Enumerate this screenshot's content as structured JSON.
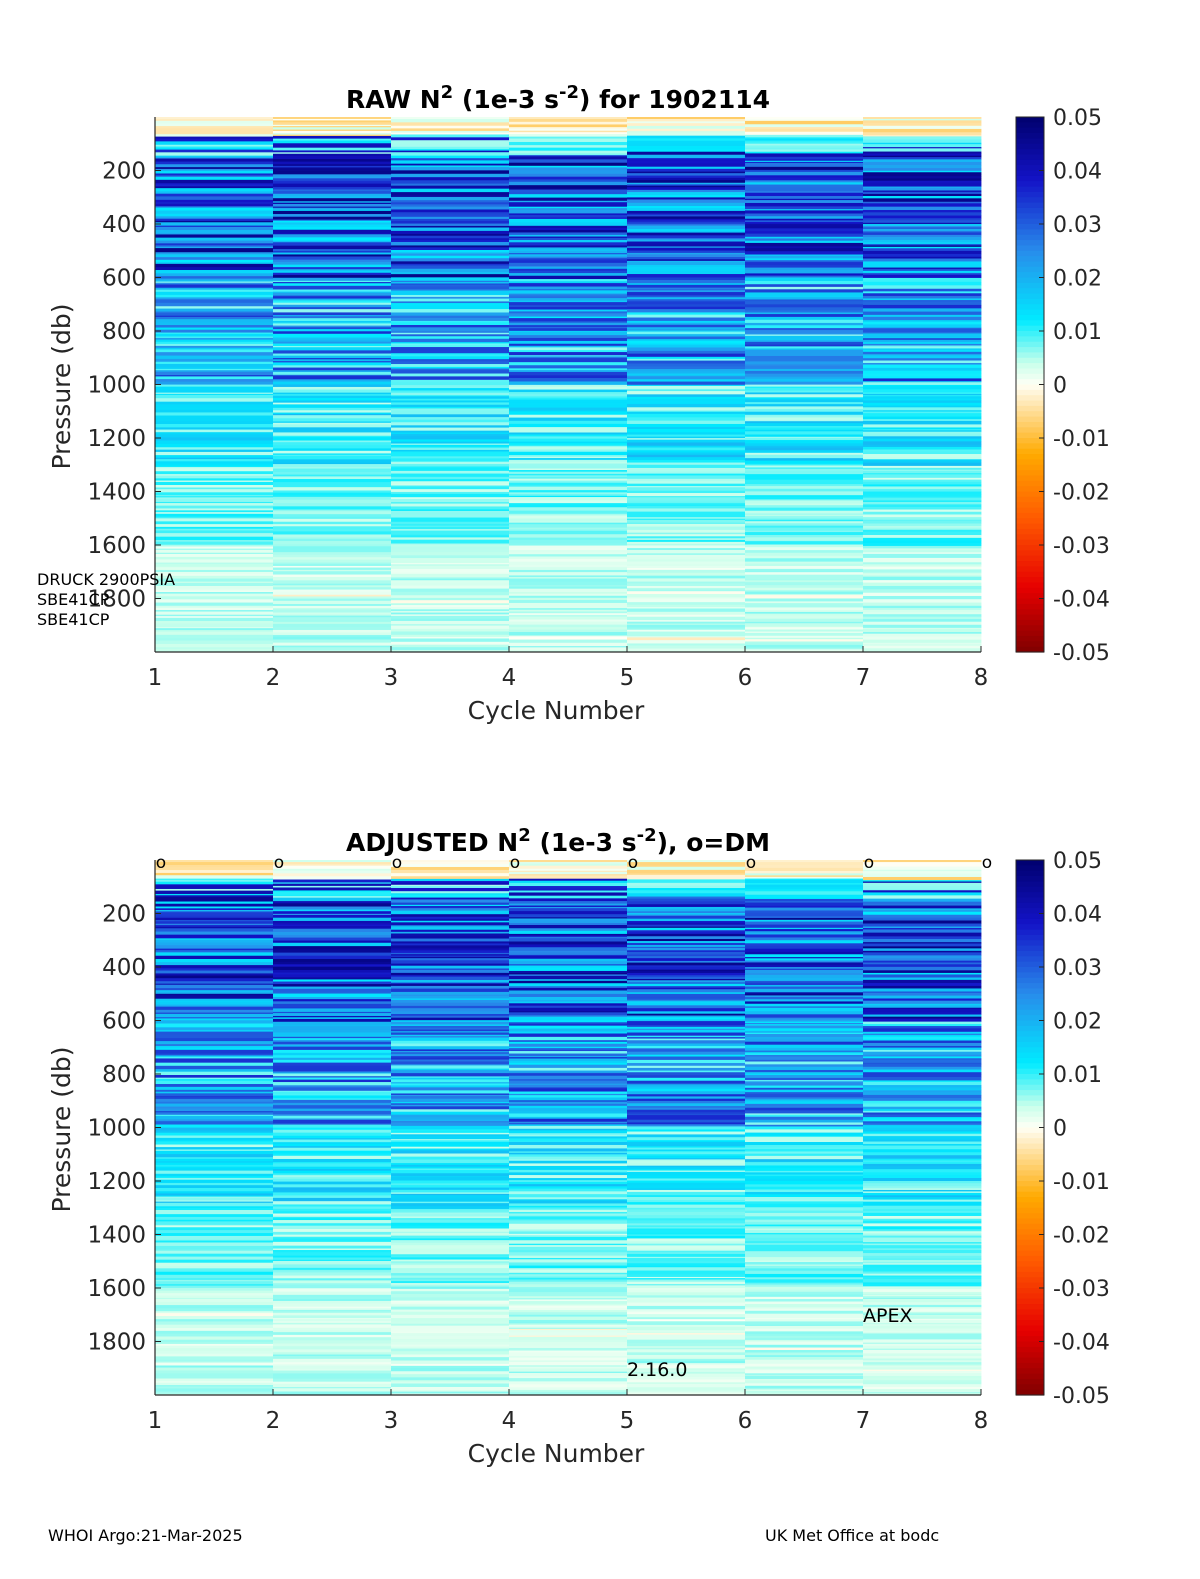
{
  "chart_data": [
    {
      "type": "heatmap",
      "title_main": "RAW N",
      "title_sup1": "2",
      "title_mid": " (1e-3 s",
      "title_sup2": "-2",
      "title_end": ") for 1902114",
      "xlabel": "Cycle Number",
      "ylabel": "Pressure (db)",
      "xlim": [
        1,
        8
      ],
      "ylim": [
        2000,
        0
      ],
      "x_ticks": [
        "1",
        "2",
        "3",
        "4",
        "5",
        "6",
        "7",
        "8"
      ],
      "y_ticks": [
        "200",
        "400",
        "600",
        "800",
        "1000",
        "1200",
        "1400",
        "1600",
        "1800"
      ],
      "colorbar": {
        "range": [
          -0.05,
          0.05
        ],
        "ticks": [
          "0.05",
          "0.04",
          "0.03",
          "0.02",
          "0.01",
          "0",
          "-0.01",
          "-0.02",
          "-0.03",
          "-0.04",
          "-0.05"
        ]
      },
      "cycles": [
        1,
        2,
        3,
        4,
        5,
        6,
        7
      ],
      "annotations": [
        "DRUCK 2900PSIA",
        "SBE41CP",
        "SBE41CP"
      ],
      "show_dm_markers": false
    },
    {
      "type": "heatmap",
      "title_main": "ADJUSTED N",
      "title_sup1": "2",
      "title_mid": " (1e-3 s",
      "title_sup2": "-2",
      "title_end": "), o=DM",
      "xlabel": "Cycle Number",
      "ylabel": "Pressure (db)",
      "xlim": [
        1,
        8
      ],
      "ylim": [
        2000,
        0
      ],
      "x_ticks": [
        "1",
        "2",
        "3",
        "4",
        "5",
        "6",
        "7",
        "8"
      ],
      "y_ticks": [
        "200",
        "400",
        "600",
        "800",
        "1000",
        "1200",
        "1400",
        "1600",
        "1800"
      ],
      "colorbar": {
        "range": [
          -0.05,
          0.05
        ],
        "ticks": [
          "0.05",
          "0.04",
          "0.03",
          "0.02",
          "0.01",
          "0",
          "-0.01",
          "-0.02",
          "-0.03",
          "-0.04",
          "-0.05"
        ]
      },
      "cycles": [
        1,
        2,
        3,
        4,
        5,
        6,
        7
      ],
      "dm_marker_symbol": "o",
      "dm_marker_cycles": [
        1,
        2,
        3,
        4,
        5,
        6,
        7,
        8
      ],
      "annotations": [
        "APEX",
        "2.16.0"
      ],
      "show_dm_markers": true
    }
  ],
  "footer": {
    "left": "WHOI Argo:21-Mar-2025",
    "right": "UK Met Office at bodc"
  }
}
